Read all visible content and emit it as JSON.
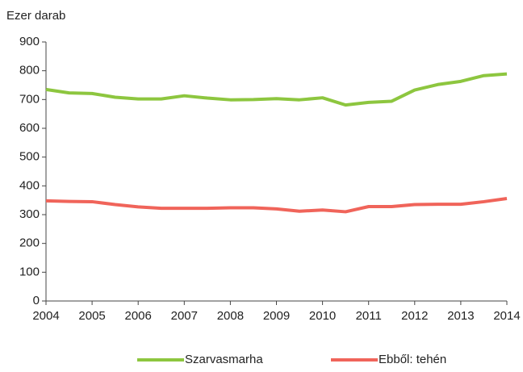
{
  "chart_data": {
    "type": "line",
    "y_axis_label": "Ezer darab",
    "x": [
      2004,
      2004.5,
      2005,
      2005.5,
      2006,
      2006.5,
      2007,
      2007.5,
      2008,
      2008.5,
      2009,
      2009.5,
      2010,
      2010.5,
      2011,
      2011.5,
      2012,
      2012.5,
      2013,
      2013.5,
      2014
    ],
    "series": [
      {
        "name": "Szarvasmarha",
        "color": "#8dc63f",
        "values": [
          735,
          723,
          721,
          708,
          702,
          702,
          713,
          705,
          699,
          700,
          703,
          699,
          706,
          681,
          690,
          694,
          733,
          752,
          763,
          783,
          789
        ]
      },
      {
        "name": "Ebből: tehén",
        "color": "#f0645a",
        "values": [
          348,
          346,
          345,
          335,
          327,
          322,
          322,
          322,
          324,
          324,
          320,
          312,
          316,
          310,
          328,
          328,
          335,
          336,
          336,
          345,
          356
        ]
      }
    ],
    "xlim": [
      2004,
      2014
    ],
    "xticks": [
      2004,
      2005,
      2006,
      2007,
      2008,
      2009,
      2010,
      2011,
      2012,
      2013,
      2014
    ],
    "ylim": [
      0,
      900
    ],
    "yticks": [
      0,
      100,
      200,
      300,
      400,
      500,
      600,
      700,
      800,
      900
    ],
    "grid": false,
    "legend": "bottom"
  }
}
